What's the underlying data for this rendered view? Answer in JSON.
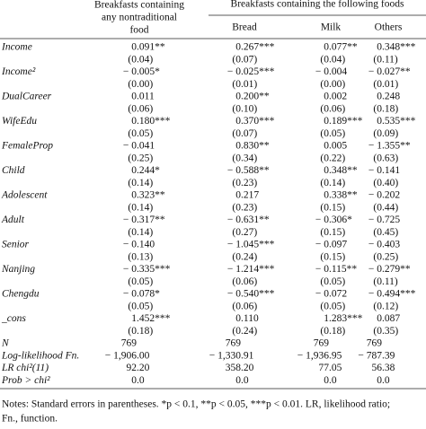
{
  "table": {
    "header": {
      "first_col": [
        "Breakfasts containing",
        "any nontraditional",
        "food"
      ],
      "group": "Breakfasts containing the following foods",
      "sub_cols": [
        "Bread",
        "Milk",
        "Others"
      ]
    },
    "rows": [
      {
        "label": "Income",
        "values": [
          "0.091**",
          "0.267***",
          "0.077**",
          "0.348***"
        ],
        "se": [
          "(0.04)",
          "(0.07)",
          "(0.04)",
          "(0.11)"
        ]
      },
      {
        "label": "Income²",
        "values": [
          "− 0.005*",
          "− 0.025***",
          "− 0.004",
          "− 0.027**"
        ],
        "se": [
          "(0.00)",
          "(0.01)",
          "(0.00)",
          "(0.01)"
        ]
      },
      {
        "label": "DualCareer",
        "values": [
          "0.011",
          "0.200**",
          "0.002",
          "0.248"
        ],
        "se": [
          "(0.06)",
          "(0.10)",
          "(0.06)",
          "(0.18)"
        ]
      },
      {
        "label": "WifeEdu",
        "values": [
          "0.180***",
          "0.370***",
          "0.189***",
          "0.535***"
        ],
        "se": [
          "(0.05)",
          "(0.07)",
          "(0.05)",
          "(0.09)"
        ]
      },
      {
        "label": "FemaleProp",
        "values": [
          "− 0.041",
          "0.830**",
          "0.005",
          "− 1.355**"
        ],
        "se": [
          "(0.25)",
          "(0.34)",
          "(0.22)",
          "(0.63)"
        ]
      },
      {
        "label": "Child",
        "values": [
          "0.244*",
          "− 0.588**",
          "0.348**",
          "− 0.141"
        ],
        "se": [
          "(0.14)",
          "(0.23)",
          "(0.14)",
          "(0.40)"
        ]
      },
      {
        "label": "Adolescent",
        "values": [
          "0.323**",
          "0.217",
          "0.338**",
          "− 0.202"
        ],
        "se": [
          "(0.14)",
          "(0.23)",
          "(0.15)",
          "(0.44)"
        ]
      },
      {
        "label": "Adult",
        "values": [
          "− 0.317**",
          "− 0.631**",
          "− 0.306*",
          "− 0.725"
        ],
        "se": [
          "(0.14)",
          "(0.27)",
          "(0.15)",
          "(0.45)"
        ]
      },
      {
        "label": "Senior",
        "values": [
          "− 0.140",
          "− 1.045***",
          "− 0.097",
          "− 0.403"
        ],
        "se": [
          "(0.13)",
          "(0.24)",
          "(0.15)",
          "(0.25)"
        ]
      },
      {
        "label": "Nanjing",
        "values": [
          "− 0.335***",
          "− 1.214***",
          "− 0.115**",
          "− 0.279**"
        ],
        "se": [
          "(0.05)",
          "(0.06)",
          "(0.05)",
          "(0.11)"
        ]
      },
      {
        "label": "Chengdu",
        "values": [
          "− 0.078*",
          "− 0.540***",
          "− 0.072",
          "− 0.494***"
        ],
        "se": [
          "(0.05)",
          "(0.06)",
          "(0.05)",
          "(0.12)"
        ]
      },
      {
        "label": "_cons",
        "values": [
          "1.452***",
          "0.110",
          "1.283***",
          "0.087"
        ],
        "se": [
          "(0.18)",
          "(0.24)",
          "(0.18)",
          "(0.35)"
        ]
      }
    ],
    "stats": [
      {
        "label": "N",
        "values": [
          "769",
          "769",
          "769",
          "769"
        ]
      },
      {
        "label": "Log-likelihood Fn.",
        "values": [
          "− 1,906.00",
          "− 1,330.91",
          "− 1,936.95",
          "− 787.39"
        ]
      },
      {
        "label": "LR chi²(11)",
        "values": [
          "92.20",
          "358.20",
          "77.05",
          "56.38"
        ]
      },
      {
        "label": "Prob > chi²",
        "values": [
          "0.0",
          "0.0",
          "0.0",
          "0.0"
        ]
      }
    ],
    "notes": [
      "Notes:  Standard errors in parentheses. *p < 0.1, **p < 0.05, ***p < 0.01. LR, likelihood ratio;",
      "Fn., function."
    ]
  }
}
